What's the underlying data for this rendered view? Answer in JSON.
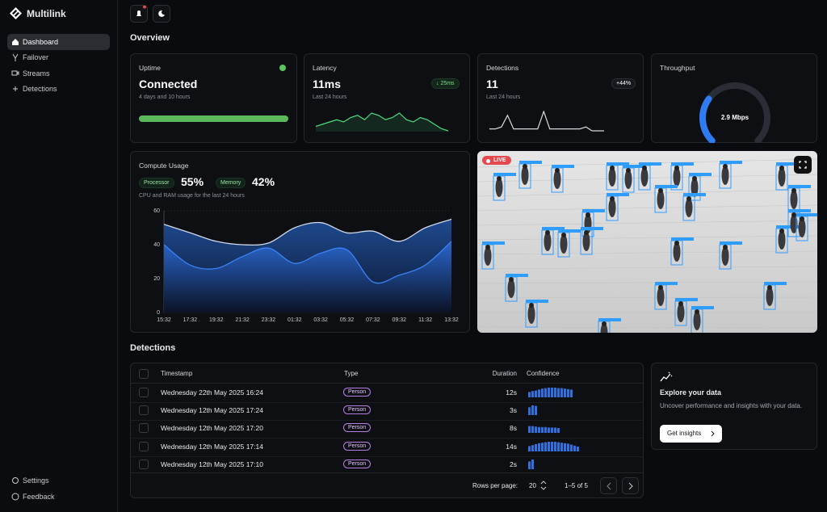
{
  "brand": "Multilink",
  "nav": [
    "Dashboard",
    "Failover",
    "Streams",
    "Detections"
  ],
  "nav_bottom": [
    "Settings",
    "Feedback"
  ],
  "overview_title": "Overview",
  "cards": {
    "uptime": {
      "title": "Uptime",
      "value": "Connected",
      "sub": "4 days and 10 hours",
      "progress": 100
    },
    "latency": {
      "title": "Latency",
      "value": "11ms",
      "badge": "↓ 25ms",
      "sub": "Last 24 hours",
      "spark": [
        3,
        4,
        5,
        6,
        5,
        7,
        8,
        6,
        9,
        8,
        6,
        7,
        9,
        6,
        5,
        7,
        6,
        4,
        2,
        1
      ]
    },
    "detections": {
      "title": "Detections",
      "value": "11",
      "badge": "+44%",
      "sub": "Last 24 hours",
      "spark": [
        2,
        2,
        3,
        9,
        2,
        2,
        2,
        2,
        2,
        11,
        2,
        2,
        2,
        2,
        2,
        2,
        3,
        1,
        1,
        1
      ]
    },
    "throughput": {
      "title": "Throughput",
      "value": "2.9 Mbps",
      "gauge_percent": 30
    }
  },
  "compute": {
    "title": "Compute Usage",
    "processor_label": "Processor",
    "processor_value": "55%",
    "memory_label": "Memory",
    "memory_value": "42%",
    "sub": "CPU and RAM usage for the last 24 hours",
    "chart_data": {
      "type": "area",
      "categories": [
        "15:32",
        "17:32",
        "19:32",
        "21:32",
        "23:32",
        "01:32",
        "03:32",
        "05:32",
        "07:32",
        "09:32",
        "11:32",
        "13:32"
      ],
      "ylim": [
        0,
        60
      ],
      "yticks": [
        0,
        20,
        40,
        60
      ],
      "grid": true,
      "series": [
        {
          "color": "#cfd9ec",
          "values": [
            52,
            47,
            42,
            40,
            41,
            50,
            53,
            47,
            48,
            42,
            50,
            55
          ]
        },
        {
          "color": "#3b82f6",
          "values": [
            40,
            28,
            26,
            33,
            38,
            29,
            35,
            37,
            18,
            22,
            28,
            42
          ]
        }
      ]
    }
  },
  "video": {
    "badge": "LIVE"
  },
  "detections": {
    "title": "Detections",
    "columns": [
      "Timestamp",
      "Type",
      "Duration",
      "Confidence"
    ],
    "rows": [
      {
        "timestamp": "Wednesday 22th May 2025 16:24",
        "type": "Person",
        "duration": "12s",
        "confidence": [
          55,
          65,
          70,
          80,
          90,
          95,
          100,
          100,
          100,
          95,
          95,
          90,
          85,
          80
        ]
      },
      {
        "timestamp": "Wednesday 12th May 2025 17:24",
        "type": "Person",
        "duration": "3s",
        "confidence": [
          80,
          100,
          95
        ]
      },
      {
        "timestamp": "Wednesday 12th May 2025 17:20",
        "type": "Person",
        "duration": "8s",
        "confidence": [
          70,
          70,
          65,
          60,
          60,
          60,
          55,
          55,
          55,
          50
        ]
      },
      {
        "timestamp": "Wednesday 12th May 2025 17:14",
        "type": "Person",
        "duration": "14s",
        "confidence": [
          55,
          65,
          75,
          85,
          90,
          95,
          100,
          100,
          100,
          95,
          90,
          85,
          80,
          70,
          60,
          50
        ]
      },
      {
        "timestamp": "Wednesday 12th May 2025 17:10",
        "type": "Person",
        "duration": "2s",
        "confidence": [
          80,
          100
        ]
      }
    ],
    "rows_per_page_label": "Rows per page:",
    "rows_per_page": "20",
    "range": "1–5 of 5"
  },
  "insights": {
    "title": "Explore your data",
    "text": "Uncover performance and insights with your data.",
    "button": "Get insights"
  }
}
